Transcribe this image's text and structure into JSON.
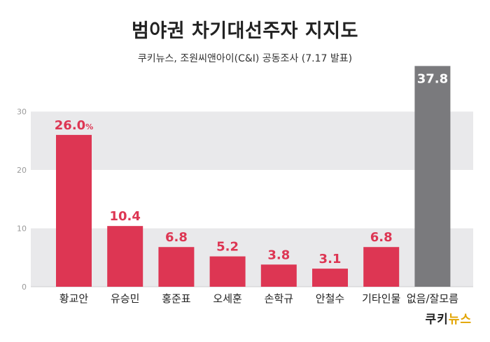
{
  "title": "범야권 차기대선주자 지지도",
  "subtitle": "쿠키뉴스, 조원씨앤아이(C&I) 공동조사 (7.17 발표)",
  "logo": {
    "part1": "쿠키",
    "part2": "뉴스"
  },
  "colors": {
    "main": "#dd3653",
    "other": "#7a7a7d",
    "band": "#e9e9eb",
    "label_main": "#dd3653",
    "label_other": "#ffffff"
  },
  "chart_data": {
    "type": "bar",
    "categories": [
      "황교안",
      "유승민",
      "홍준표",
      "오세훈",
      "손학규",
      "안철수",
      "기타인물",
      "없음/잘모름"
    ],
    "values": [
      26.0,
      10.4,
      6.8,
      5.2,
      3.8,
      3.1,
      6.8,
      37.8
    ],
    "value_labels": [
      "26.0",
      "10.4",
      "6.8",
      "5.2",
      "3.8",
      "3.1",
      "6.8",
      "37.8"
    ],
    "first_value_unit": "%",
    "ylim": [
      0,
      30
    ],
    "yticks": [
      0,
      10,
      20,
      30
    ],
    "grid": "alternating bands"
  }
}
